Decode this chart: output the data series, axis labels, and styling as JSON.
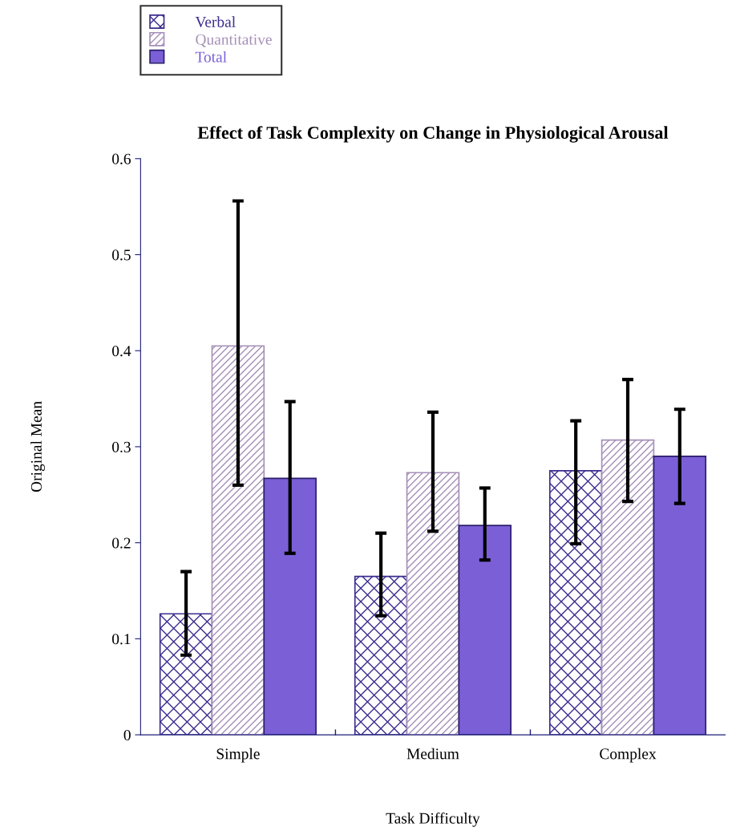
{
  "chart_data": {
    "type": "bar",
    "title": "Effect of Task Complexity on Change in Physiological Arousal",
    "xlabel": "Task Difficulty",
    "ylabel": "Original Mean",
    "categories": [
      "Simple",
      "Medium",
      "Complex"
    ],
    "series": [
      {
        "name": "Verbal",
        "color": "#3b2d8f",
        "values": [
          0.126,
          0.165,
          0.275
        ],
        "errors": [
          [
            0.083,
            0.17
          ],
          [
            0.124,
            0.21
          ],
          [
            0.199,
            0.327
          ]
        ]
      },
      {
        "name": "Quantitative",
        "color": "#a58fb8",
        "values": [
          0.405,
          0.273,
          0.307
        ],
        "errors": [
          [
            0.26,
            0.556
          ],
          [
            0.212,
            0.336
          ],
          [
            0.243,
            0.37
          ]
        ]
      },
      {
        "name": "Total",
        "color": "#7b5fd6",
        "values": [
          0.267,
          0.218,
          0.29
        ],
        "errors": [
          [
            0.189,
            0.347
          ],
          [
            0.182,
            0.257
          ],
          [
            0.241,
            0.339
          ]
        ]
      }
    ],
    "ylim": [
      0,
      0.6
    ],
    "yticks": [
      0,
      0.1,
      0.2,
      0.3,
      0.4,
      0.5,
      0.6
    ],
    "grid": false,
    "legend": "top left"
  }
}
